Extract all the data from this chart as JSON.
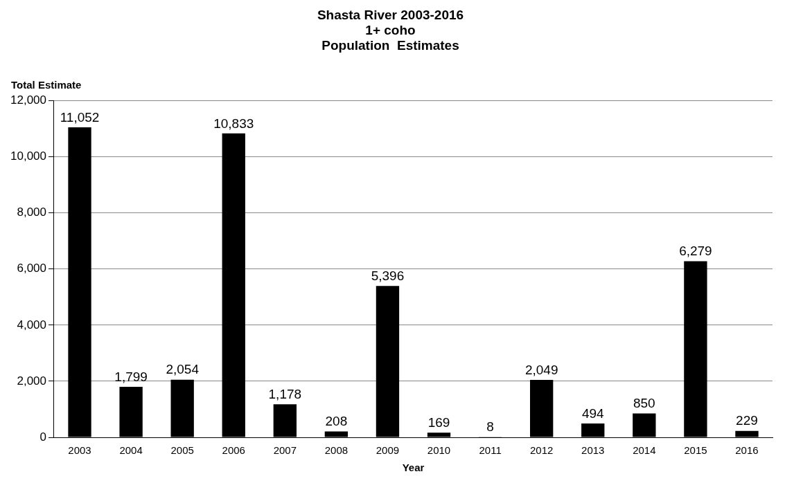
{
  "chart_data": {
    "type": "bar",
    "title": "Shasta River 2003-2016\n1+ coho\nPopulation  Estimates",
    "xlabel": "Year",
    "ylabel": "Total Estimate",
    "categories": [
      "2003",
      "2004",
      "2005",
      "2006",
      "2007",
      "2008",
      "2009",
      "2010",
      "2011",
      "2012",
      "2013",
      "2014",
      "2015",
      "2016"
    ],
    "values": [
      11052,
      1799,
      2054,
      10833,
      1178,
      208,
      5396,
      169,
      8,
      2049,
      494,
      850,
      6279,
      229
    ],
    "value_labels": [
      "11,052",
      "1,799",
      "2,054",
      "10,833",
      "1,178",
      "208",
      "5,396",
      "169",
      "8",
      "2,049",
      "494",
      "850",
      "6,279",
      "229"
    ],
    "color": "#000000",
    "grid": "y",
    "legend": false,
    "ylim": [
      0,
      12000
    ],
    "yticks": [
      {
        "value": 0,
        "label": "0"
      },
      {
        "value": 2000,
        "label": "2,000"
      },
      {
        "value": 4000,
        "label": "4,000"
      },
      {
        "value": 6000,
        "label": "6,000"
      },
      {
        "value": 8000,
        "label": "8,000"
      },
      {
        "value": 10000,
        "label": "10,000"
      },
      {
        "value": 12000,
        "label": "12,000"
      }
    ]
  }
}
